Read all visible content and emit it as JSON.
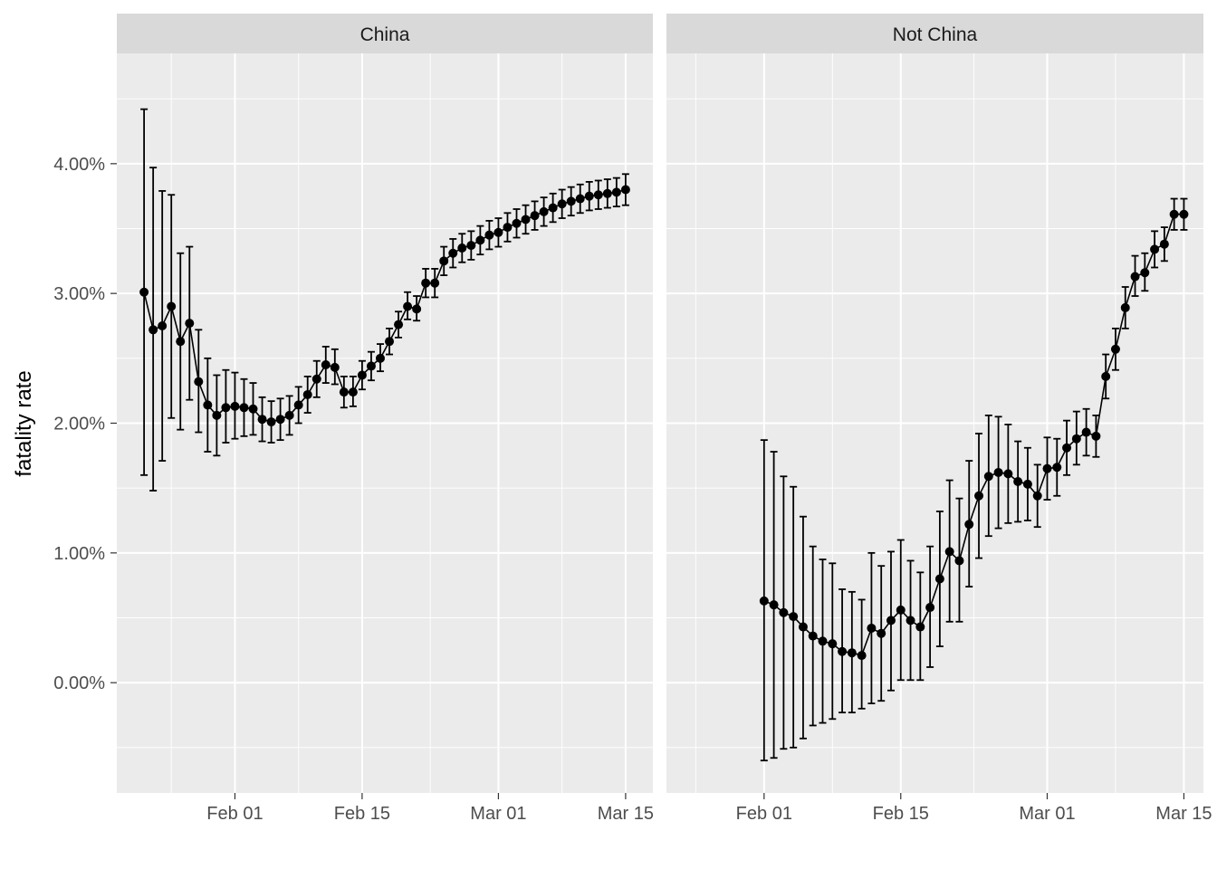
{
  "chart_data": {
    "type": "scatter",
    "ylabel": "fatality rate",
    "ylim": [
      -0.0085,
      0.0485
    ],
    "y_ticks": [
      0,
      0.01,
      0.02,
      0.03,
      0.04
    ],
    "y_tick_labels": [
      "0.00%",
      "1.00%",
      "2.00%",
      "3.00%",
      "4.00%"
    ],
    "x_ticks": [
      "2020-02-01",
      "2020-02-15",
      "2020-03-01",
      "2020-03-15"
    ],
    "x_tick_labels": [
      "Feb 01",
      "Feb 15",
      "Mar 01",
      "Mar 15"
    ],
    "error_bars": true,
    "panels": [
      {
        "title": "China",
        "x_range": [
          "2020-01-19",
          "2020-03-18"
        ],
        "dates": [
          "2020-01-22",
          "2020-01-23",
          "2020-01-24",
          "2020-01-25",
          "2020-01-26",
          "2020-01-27",
          "2020-01-28",
          "2020-01-29",
          "2020-01-30",
          "2020-01-31",
          "2020-02-01",
          "2020-02-02",
          "2020-02-03",
          "2020-02-04",
          "2020-02-05",
          "2020-02-06",
          "2020-02-07",
          "2020-02-08",
          "2020-02-09",
          "2020-02-10",
          "2020-02-11",
          "2020-02-12",
          "2020-02-13",
          "2020-02-14",
          "2020-02-15",
          "2020-02-16",
          "2020-02-17",
          "2020-02-18",
          "2020-02-19",
          "2020-02-20",
          "2020-02-21",
          "2020-02-22",
          "2020-02-23",
          "2020-02-24",
          "2020-02-25",
          "2020-02-26",
          "2020-02-27",
          "2020-02-28",
          "2020-02-29",
          "2020-03-01",
          "2020-03-02",
          "2020-03-03",
          "2020-03-04",
          "2020-03-05",
          "2020-03-06",
          "2020-03-07",
          "2020-03-08",
          "2020-03-09",
          "2020-03-10",
          "2020-03-11",
          "2020-03-12",
          "2020-03-13",
          "2020-03-14",
          "2020-03-15"
        ],
        "rate": [
          0.0301,
          0.0272,
          0.0275,
          0.029,
          0.0263,
          0.0277,
          0.0232,
          0.0214,
          0.0206,
          0.0212,
          0.0213,
          0.0212,
          0.0211,
          0.0203,
          0.0201,
          0.0203,
          0.0206,
          0.0214,
          0.0222,
          0.0234,
          0.0245,
          0.0243,
          0.0224,
          0.0224,
          0.0237,
          0.0244,
          0.025,
          0.0263,
          0.0276,
          0.029,
          0.0288,
          0.0308,
          0.0308,
          0.0325,
          0.0331,
          0.0335,
          0.0337,
          0.0341,
          0.0345,
          0.0347,
          0.0351,
          0.0354,
          0.0357,
          0.036,
          0.0363,
          0.0366,
          0.0369,
          0.0371,
          0.0373,
          0.0375,
          0.0376,
          0.0377,
          0.0378,
          0.038
        ],
        "lower": [
          0.016,
          0.0148,
          0.0171,
          0.0204,
          0.0195,
          0.0218,
          0.0193,
          0.0178,
          0.0175,
          0.0185,
          0.0188,
          0.019,
          0.0191,
          0.0186,
          0.0185,
          0.0187,
          0.0191,
          0.02,
          0.0208,
          0.022,
          0.0231,
          0.023,
          0.0212,
          0.0213,
          0.0226,
          0.0233,
          0.024,
          0.0253,
          0.0266,
          0.028,
          0.0279,
          0.0297,
          0.0297,
          0.0314,
          0.032,
          0.0324,
          0.0326,
          0.033,
          0.0334,
          0.0336,
          0.034,
          0.0343,
          0.0346,
          0.0349,
          0.0352,
          0.0355,
          0.0358,
          0.036,
          0.0362,
          0.0364,
          0.0365,
          0.0366,
          0.0367,
          0.0368
        ],
        "upper": [
          0.0442,
          0.0397,
          0.0379,
          0.0376,
          0.0331,
          0.0336,
          0.0272,
          0.025,
          0.0237,
          0.0241,
          0.0239,
          0.0234,
          0.0231,
          0.022,
          0.0217,
          0.0219,
          0.0221,
          0.0228,
          0.0236,
          0.0248,
          0.0259,
          0.0257,
          0.0236,
          0.0236,
          0.0248,
          0.0255,
          0.0261,
          0.0273,
          0.0286,
          0.0301,
          0.0298,
          0.0319,
          0.0319,
          0.0336,
          0.0342,
          0.0346,
          0.0348,
          0.0352,
          0.0356,
          0.0358,
          0.0362,
          0.0365,
          0.0368,
          0.0371,
          0.0374,
          0.0377,
          0.038,
          0.0382,
          0.0384,
          0.0386,
          0.0387,
          0.0388,
          0.0389,
          0.0392
        ]
      },
      {
        "title": "Not China",
        "x_range": [
          "2020-01-22",
          "2020-03-17"
        ],
        "dates": [
          "2020-02-01",
          "2020-02-02",
          "2020-02-03",
          "2020-02-04",
          "2020-02-05",
          "2020-02-06",
          "2020-02-07",
          "2020-02-08",
          "2020-02-09",
          "2020-02-10",
          "2020-02-11",
          "2020-02-12",
          "2020-02-13",
          "2020-02-14",
          "2020-02-15",
          "2020-02-16",
          "2020-02-17",
          "2020-02-18",
          "2020-02-19",
          "2020-02-20",
          "2020-02-21",
          "2020-02-22",
          "2020-02-23",
          "2020-02-24",
          "2020-02-25",
          "2020-02-26",
          "2020-02-27",
          "2020-02-28",
          "2020-02-29",
          "2020-03-01",
          "2020-03-02",
          "2020-03-03",
          "2020-03-04",
          "2020-03-05",
          "2020-03-06",
          "2020-03-07",
          "2020-03-08",
          "2020-03-09",
          "2020-03-10",
          "2020-03-11",
          "2020-03-12",
          "2020-03-13",
          "2020-03-14",
          "2020-03-15"
        ],
        "rate": [
          0.0063,
          0.006,
          0.0054,
          0.0051,
          0.0043,
          0.0036,
          0.0032,
          0.003,
          0.0024,
          0.0023,
          0.0021,
          0.0042,
          0.0038,
          0.0048,
          0.0056,
          0.0048,
          0.0043,
          0.0058,
          0.008,
          0.0101,
          0.0094,
          0.0122,
          0.0144,
          0.0159,
          0.0162,
          0.0161,
          0.0155,
          0.0153,
          0.0144,
          0.0165,
          0.0166,
          0.0181,
          0.0188,
          0.0193,
          0.019,
          0.0236,
          0.0257,
          0.0289,
          0.0313,
          0.0316,
          0.0334,
          0.0338,
          0.0361,
          0.0361
        ],
        "lower": [
          -0.006,
          -0.0058,
          -0.0051,
          -0.005,
          -0.0043,
          -0.0033,
          -0.0031,
          -0.0028,
          -0.0023,
          -0.0023,
          -0.002,
          -0.0016,
          -0.0014,
          -0.0006,
          0.0002,
          0.0002,
          0.0002,
          0.0012,
          0.0028,
          0.0047,
          0.0047,
          0.0074,
          0.0096,
          0.0113,
          0.0119,
          0.0123,
          0.0124,
          0.0125,
          0.012,
          0.0141,
          0.0144,
          0.016,
          0.0168,
          0.0175,
          0.0174,
          0.0219,
          0.0241,
          0.0273,
          0.0298,
          0.0302,
          0.032,
          0.0325,
          0.0349,
          0.0349
        ],
        "upper": [
          0.0187,
          0.0178,
          0.0159,
          0.0151,
          0.0128,
          0.0105,
          0.0095,
          0.0092,
          0.0072,
          0.007,
          0.0064,
          0.01,
          0.009,
          0.0101,
          0.011,
          0.0094,
          0.0085,
          0.0105,
          0.0132,
          0.0156,
          0.0142,
          0.0171,
          0.0192,
          0.0206,
          0.0205,
          0.0199,
          0.0186,
          0.0181,
          0.0168,
          0.0189,
          0.0188,
          0.0202,
          0.0209,
          0.0211,
          0.0206,
          0.0253,
          0.0273,
          0.0305,
          0.0329,
          0.0331,
          0.0348,
          0.0351,
          0.0373,
          0.0373
        ]
      }
    ]
  }
}
